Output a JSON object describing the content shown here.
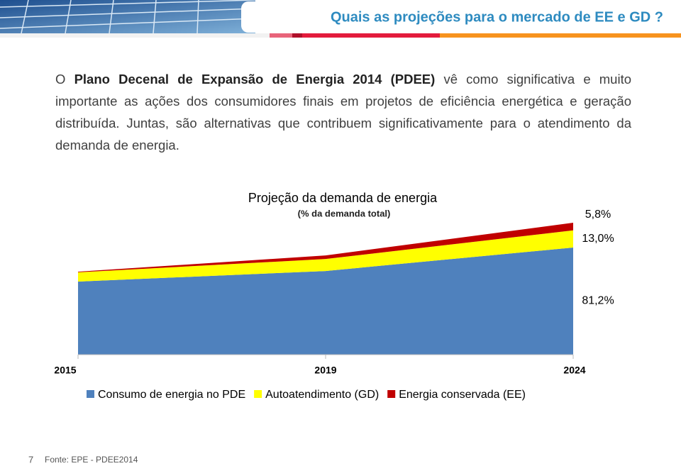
{
  "header": {
    "title": "Quais as projeções para o mercado de EE e GD ?"
  },
  "body": {
    "intro": "O ",
    "bold": "Plano Decenal de Expansão de Energia 2014 (PDEE)",
    "text": " vê como significativa e muito importante as ações dos consumidores finais em projetos de eficiência energética e geração distribuída. Juntas, são alternativas que contribuem significativamente para o atendimento da demanda de energia."
  },
  "chart_data": {
    "type": "stacked-area",
    "title": "Projeção da demanda de energia",
    "subtitle": "(% da demanda total)",
    "categories": [
      "2015",
      "2019",
      "2024"
    ],
    "ylim": [
      0,
      100
    ],
    "series": [
      {
        "name": "Consumo de energia no PDE",
        "color": "#4f81bd",
        "values": [
          55.4,
          63.4,
          81.2
        ],
        "value_labels": [
          null,
          null,
          "81,2%"
        ]
      },
      {
        "name": "Autoatendimento (GD)",
        "color": "#ffff00",
        "values": [
          7.0,
          9.1,
          13.0
        ],
        "value_labels": [
          null,
          null,
          "13,0%"
        ]
      },
      {
        "name": "Energia conservada (EE)",
        "color": "#c00000",
        "values": [
          0.5,
          2.7,
          5.8
        ],
        "value_labels": [
          null,
          null,
          "5,8%"
        ]
      }
    ]
  },
  "footer": {
    "page": "7",
    "source": "Fonte: EPE - PDEE2014"
  }
}
